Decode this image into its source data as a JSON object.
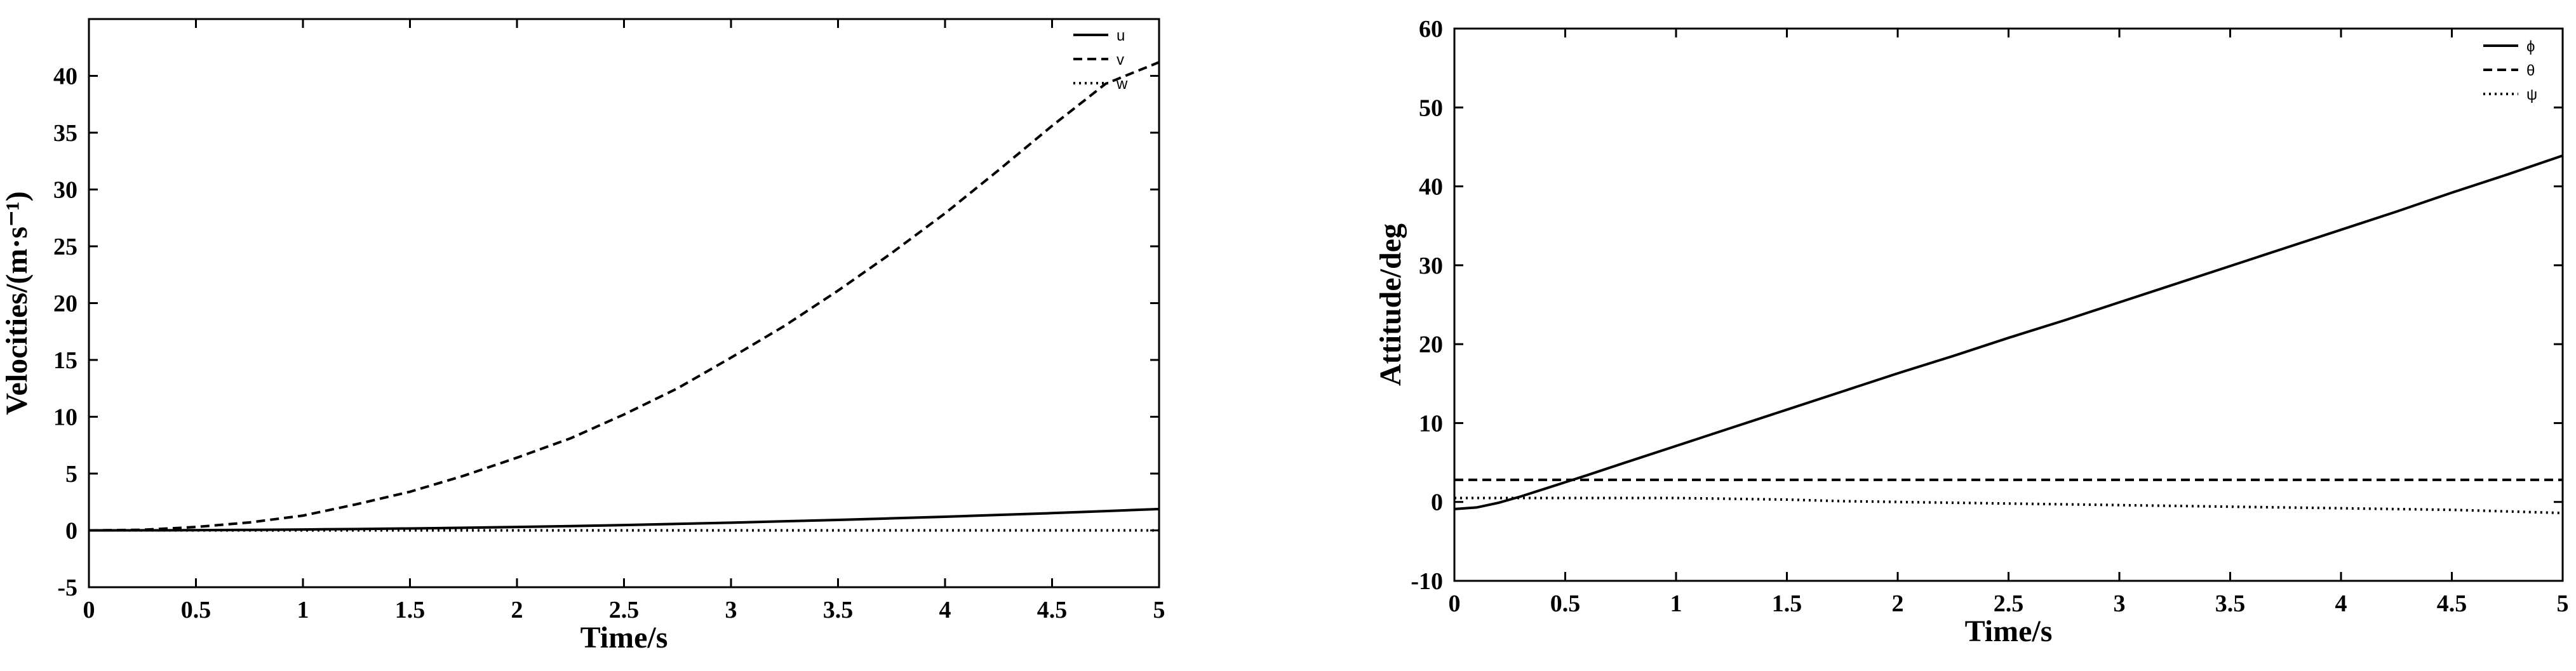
{
  "chart_data": [
    {
      "type": "line",
      "xlabel": "Time/s",
      "ylabel": "Velocities/(m·s⁻¹)",
      "xlim": [
        0,
        5
      ],
      "ylim": [
        -5,
        45
      ],
      "xticks": [
        "0",
        "0.5",
        "1",
        "1.5",
        "2",
        "2.5",
        "3",
        "3.5",
        "4",
        "4.5",
        "5"
      ],
      "yticks": [
        "-5",
        "0",
        "5",
        "10",
        "15",
        "20",
        "25",
        "30",
        "35",
        "40"
      ],
      "grid": false,
      "legend": "top-right",
      "x": [
        0,
        0.25,
        0.5,
        0.75,
        1,
        1.25,
        1.5,
        1.75,
        2,
        2.25,
        2.5,
        2.75,
        3,
        3.25,
        3.5,
        3.75,
        4,
        4.25,
        4.5,
        4.75,
        5
      ],
      "series": [
        {
          "name": "u",
          "style": "solid",
          "values": [
            0,
            0.005,
            0.02,
            0.045,
            0.08,
            0.12,
            0.17,
            0.23,
            0.3,
            0.38,
            0.47,
            0.57,
            0.68,
            0.8,
            0.92,
            1.06,
            1.2,
            1.36,
            1.52,
            1.7,
            1.88
          ]
        },
        {
          "name": "v",
          "style": "dashed",
          "values": [
            0,
            0.05,
            0.3,
            0.7,
            1.3,
            2.3,
            3.4,
            4.8,
            6.4,
            8.1,
            10.2,
            12.5,
            15.2,
            18.0,
            21.1,
            24.4,
            27.9,
            31.7,
            35.6,
            39.3,
            41.2
          ]
        },
        {
          "name": "w",
          "style": "dotted",
          "values": [
            0,
            0,
            0,
            0,
            0,
            0,
            0,
            0,
            0,
            0,
            0,
            0,
            0,
            0,
            0,
            0,
            0,
            0,
            0,
            0,
            0
          ]
        }
      ]
    },
    {
      "type": "line",
      "xlabel": "Time/s",
      "ylabel": "Attitude/deg",
      "xlim": [
        0,
        5
      ],
      "ylim": [
        -10,
        60
      ],
      "xticks": [
        "0",
        "0.5",
        "1",
        "1.5",
        "2",
        "2.5",
        "3",
        "3.5",
        "4",
        "4.5",
        "5"
      ],
      "yticks": [
        "-10",
        "0",
        "10",
        "20",
        "30",
        "40",
        "50",
        "60"
      ],
      "grid": false,
      "legend": "top-right",
      "x": [
        0,
        0.1,
        0.2,
        0.3,
        0.4,
        0.5,
        0.6,
        0.75,
        1,
        1.25,
        1.5,
        1.75,
        2,
        2.25,
        2.5,
        2.75,
        3,
        3.25,
        3.5,
        3.75,
        4,
        4.25,
        4.5,
        4.75,
        5
      ],
      "series": [
        {
          "name": "ϕ",
          "style": "solid",
          "values": [
            -0.9,
            -0.7,
            -0.1,
            0.7,
            1.6,
            2.5,
            3.4,
            4.8,
            7.1,
            9.4,
            11.7,
            14.0,
            16.3,
            18.5,
            20.8,
            23.0,
            25.3,
            27.6,
            29.9,
            32.2,
            34.5,
            36.8,
            39.2,
            41.5,
            43.9
          ]
        },
        {
          "name": "θ",
          "style": "dashed",
          "values": [
            2.8,
            2.8,
            2.8,
            2.8,
            2.8,
            2.8,
            2.8,
            2.8,
            2.8,
            2.8,
            2.8,
            2.8,
            2.8,
            2.8,
            2.8,
            2.8,
            2.8,
            2.8,
            2.8,
            2.8,
            2.8,
            2.8,
            2.8,
            2.8,
            2.8
          ]
        },
        {
          "name": "ψ",
          "style": "dotted",
          "values": [
            0.5,
            0.5,
            0.5,
            0.5,
            0.5,
            0.5,
            0.5,
            0.5,
            0.5,
            0.4,
            0.3,
            0.1,
            0,
            -0.1,
            -0.2,
            -0.3,
            -0.4,
            -0.5,
            -0.6,
            -0.7,
            -0.8,
            -0.9,
            -1.0,
            -1.2,
            -1.4
          ]
        }
      ]
    }
  ]
}
